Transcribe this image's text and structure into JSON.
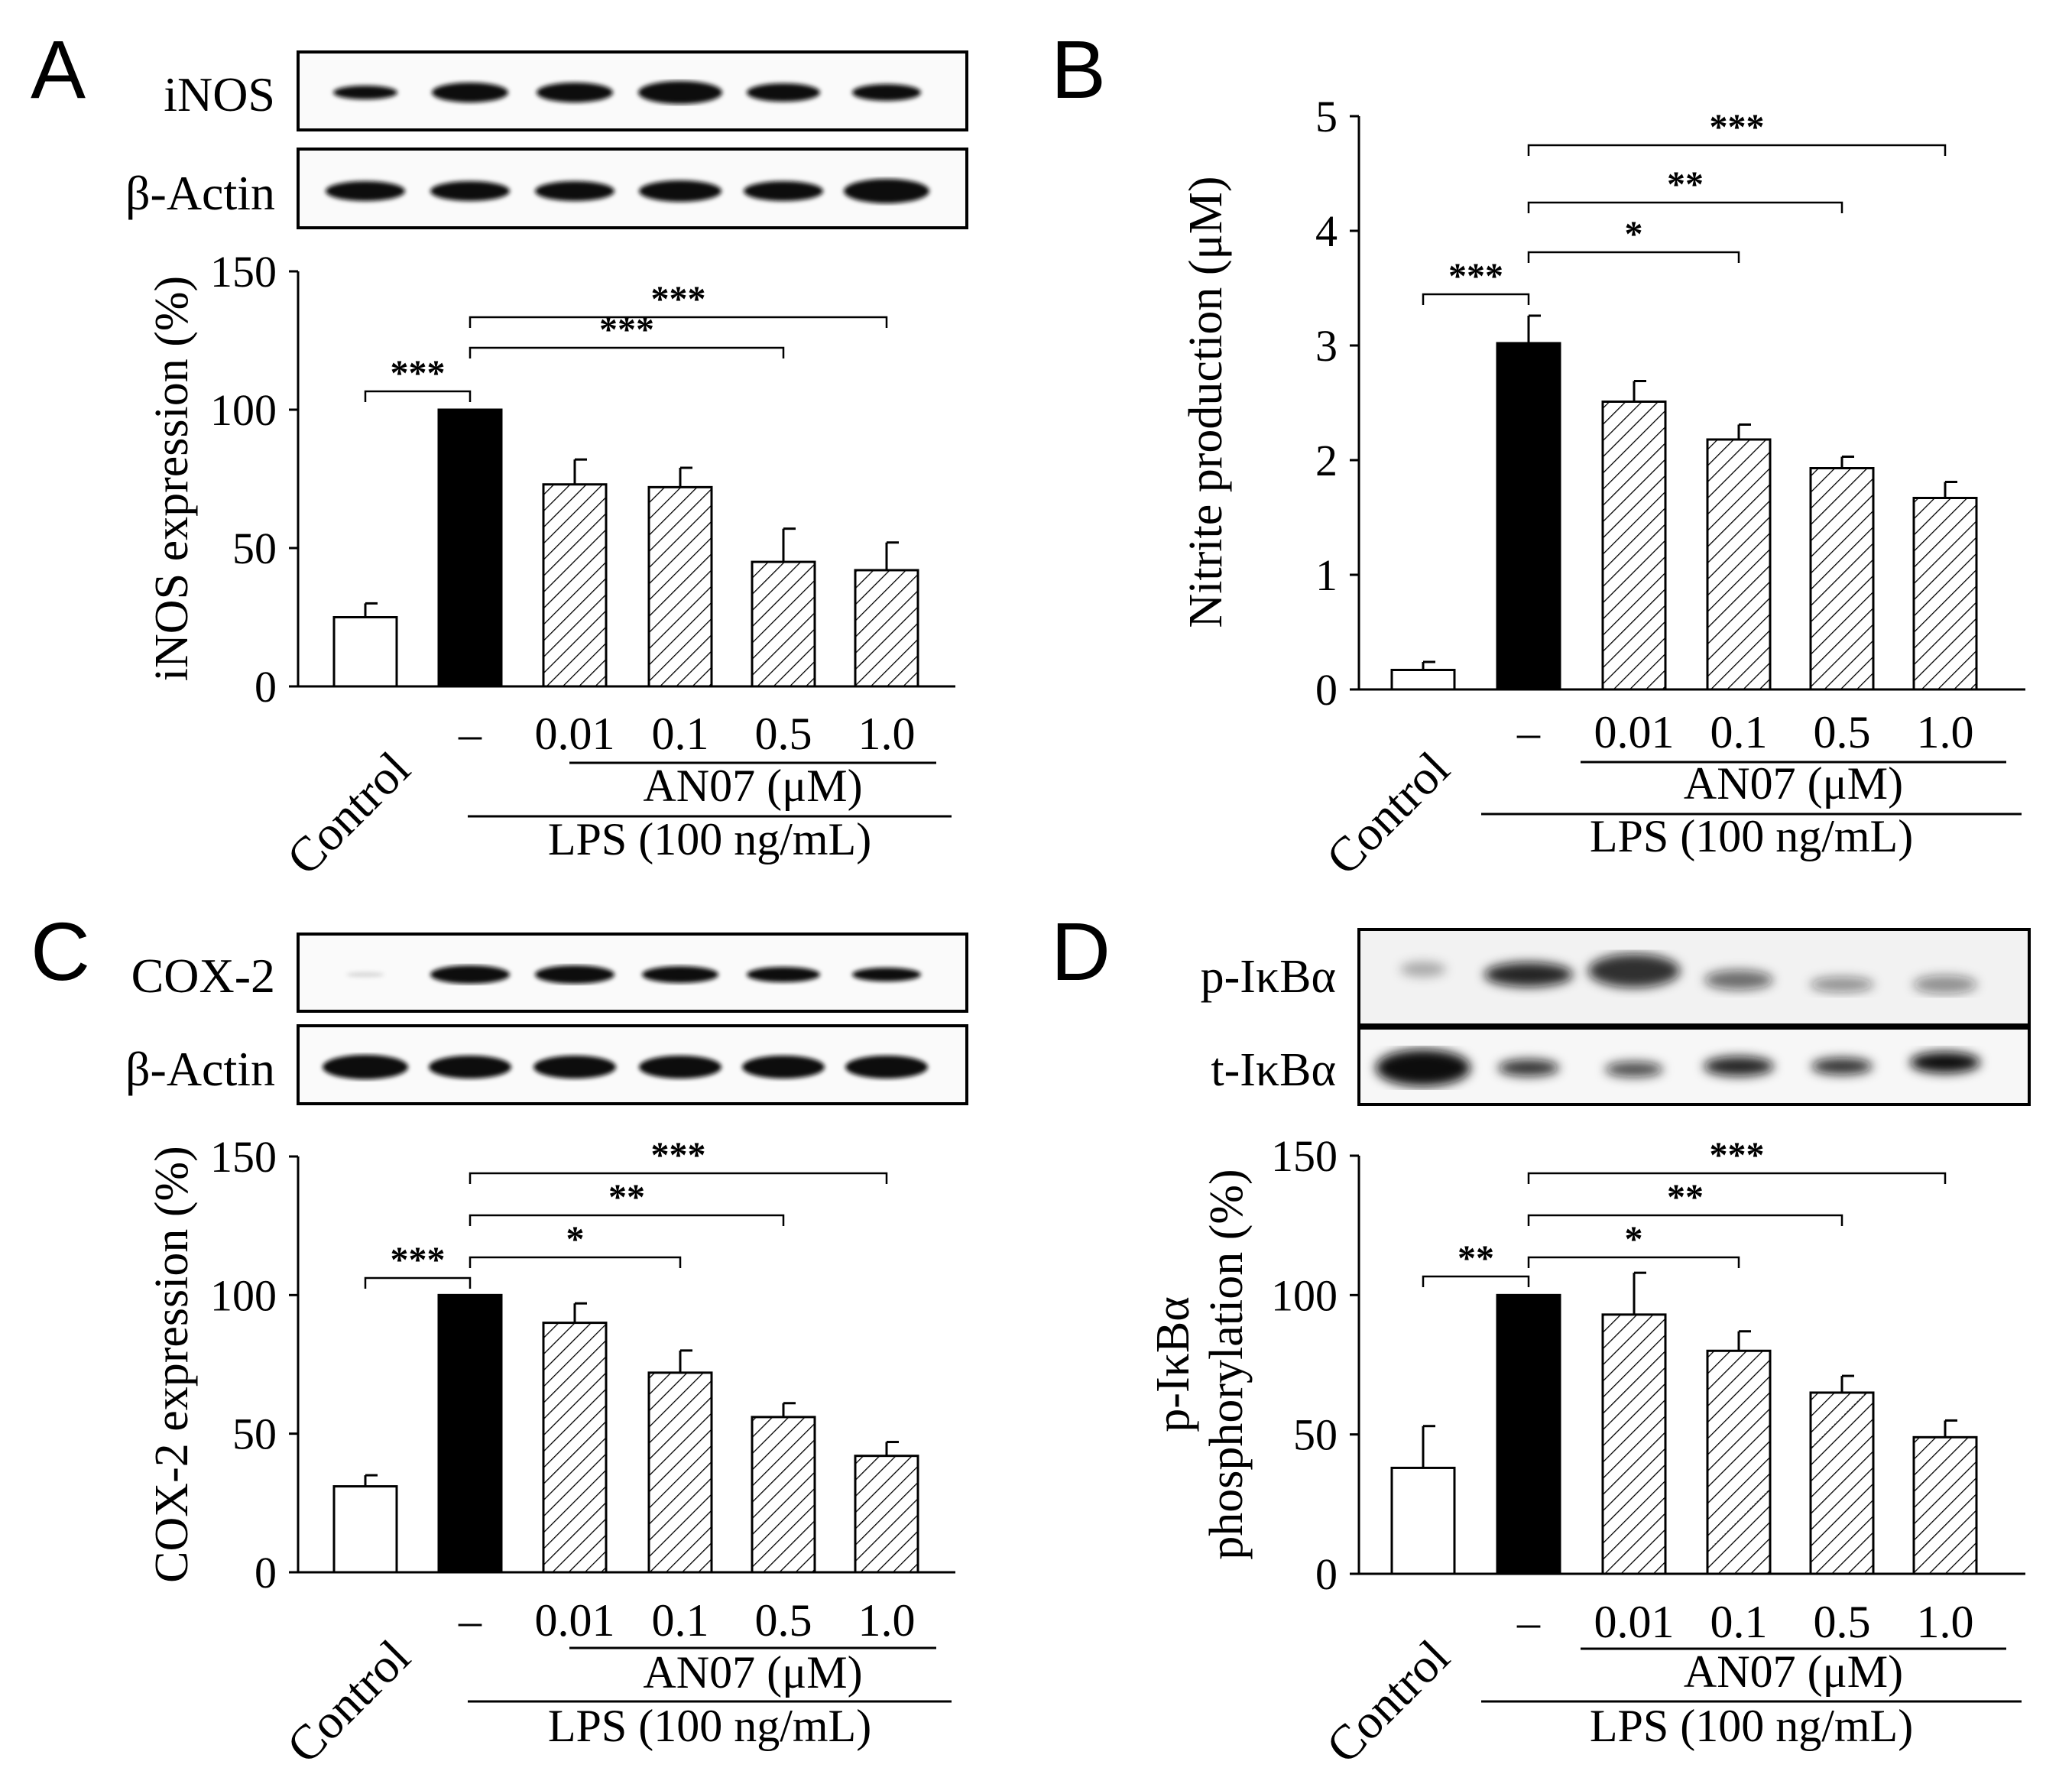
{
  "chart_data": [
    {
      "panel": "A",
      "type": "bar",
      "blot_labels": [
        "iNOS",
        "β-Actin"
      ],
      "ylabel": "iNOS expression (%)",
      "ylim": [
        0,
        150
      ],
      "yticks": [
        "0",
        "50",
        "100",
        "150"
      ],
      "categories": [
        "Control",
        "–",
        "0.01",
        "0.1",
        "0.5",
        "1.0"
      ],
      "values": [
        25,
        100,
        73,
        72,
        45,
        42
      ],
      "errors": [
        5,
        0,
        9,
        7,
        12,
        10
      ],
      "bar_styles": [
        "open",
        "solid",
        "hatched",
        "hatched",
        "hatched",
        "hatched"
      ],
      "an07_label": "AN07 (μM)",
      "lps_label": "LPS (100 ng/mL)",
      "significance": [
        {
          "from": 0,
          "to": 1,
          "label": "***"
        },
        {
          "from": 1,
          "to": 4,
          "label": "***"
        },
        {
          "from": 1,
          "to": 5,
          "label": "***"
        }
      ]
    },
    {
      "panel": "B",
      "type": "bar",
      "blot_labels": [],
      "ylabel": "Nitrite production (μM)",
      "ylim": [
        0,
        5
      ],
      "yticks": [
        "0",
        "1",
        "2",
        "3",
        "4",
        "5"
      ],
      "categories": [
        "Control",
        "–",
        "0.01",
        "0.1",
        "0.5",
        "1.0"
      ],
      "values": [
        0.17,
        3.02,
        2.51,
        2.18,
        1.93,
        1.67
      ],
      "errors": [
        0.07,
        0.24,
        0.18,
        0.13,
        0.1,
        0.14
      ],
      "bar_styles": [
        "open",
        "solid",
        "hatched",
        "hatched",
        "hatched",
        "hatched"
      ],
      "an07_label": "AN07 (μM)",
      "lps_label": "LPS (100 ng/mL)",
      "significance": [
        {
          "from": 0,
          "to": 1,
          "label": "***"
        },
        {
          "from": 1,
          "to": 3,
          "label": "*"
        },
        {
          "from": 1,
          "to": 4,
          "label": "**"
        },
        {
          "from": 1,
          "to": 5,
          "label": "***"
        }
      ]
    },
    {
      "panel": "C",
      "type": "bar",
      "blot_labels": [
        "COX-2",
        "β-Actin"
      ],
      "ylabel": "COX-2 expression (%)",
      "ylim": [
        0,
        150
      ],
      "yticks": [
        "0",
        "50",
        "100",
        "150"
      ],
      "categories": [
        "Control",
        "–",
        "0.01",
        "0.1",
        "0.5",
        "1.0"
      ],
      "values": [
        31,
        100,
        90,
        72,
        56,
        42
      ],
      "errors": [
        4,
        0,
        7,
        8,
        5,
        5
      ],
      "bar_styles": [
        "open",
        "solid",
        "hatched",
        "hatched",
        "hatched",
        "hatched"
      ],
      "an07_label": "AN07 (μM)",
      "lps_label": "LPS (100 ng/mL)",
      "significance": [
        {
          "from": 0,
          "to": 1,
          "label": "***"
        },
        {
          "from": 1,
          "to": 3,
          "label": "*"
        },
        {
          "from": 1,
          "to": 4,
          "label": "**"
        },
        {
          "from": 1,
          "to": 5,
          "label": "***"
        }
      ]
    },
    {
      "panel": "D",
      "type": "bar",
      "blot_labels": [
        "p-IκBα",
        "t-IκBα"
      ],
      "ylabel": "p-IκBα",
      "ylabel_line2": "phosphorylation (%)",
      "ylim": [
        0,
        150
      ],
      "yticks": [
        "0",
        "50",
        "100",
        "150"
      ],
      "categories": [
        "Control",
        "–",
        "0.01",
        "0.1",
        "0.5",
        "1.0"
      ],
      "values": [
        38,
        100,
        93,
        80,
        65,
        49
      ],
      "errors": [
        15,
        0,
        15,
        7,
        6,
        6
      ],
      "bar_styles": [
        "open",
        "solid",
        "hatched",
        "hatched",
        "hatched",
        "hatched"
      ],
      "an07_label": "AN07 (μM)",
      "lps_label": "LPS (100 ng/mL)",
      "significance": [
        {
          "from": 0,
          "to": 1,
          "label": "**"
        },
        {
          "from": 1,
          "to": 3,
          "label": "*"
        },
        {
          "from": 1,
          "to": 4,
          "label": "**"
        },
        {
          "from": 1,
          "to": 5,
          "label": "***"
        }
      ]
    }
  ]
}
